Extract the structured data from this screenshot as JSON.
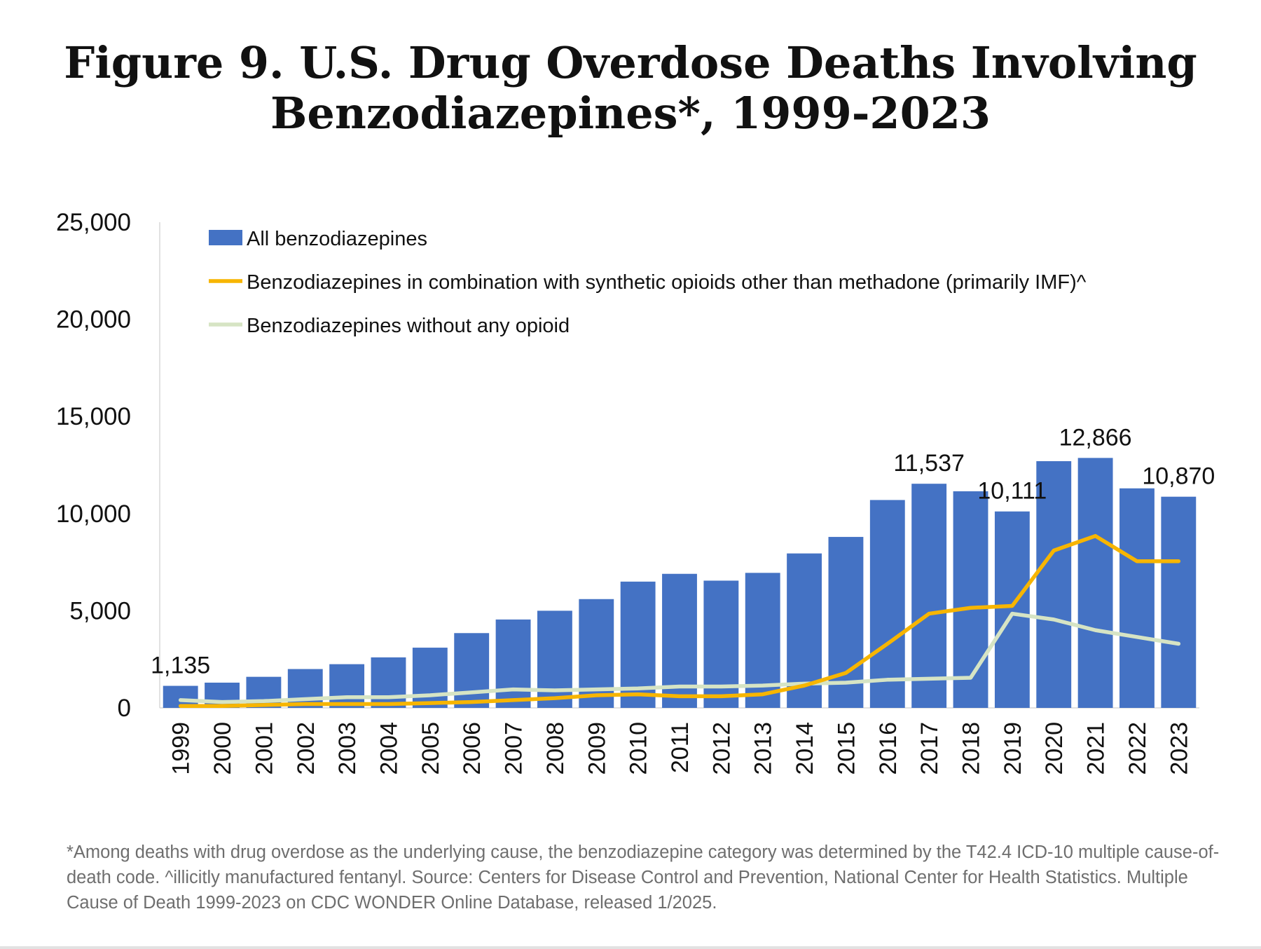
{
  "title": "Figure 9. U.S. Drug Overdose Deaths Involving Benzodiazepines*, 1999-2023",
  "title_lines": [
    "Figure 9. U.S. Drug Overdose Deaths Involving",
    "Benzodiazepines*, 1999-2023"
  ],
  "footnote": "*Among deaths with drug overdose as the underlying cause, the benzodiazepine category was determined by the T42.4 ICD-10 multiple cause-of-death code. ^illicitly manufactured fentanyl. Source: Centers for Disease Control and Prevention, National Center for Health Statistics. Multiple Cause of Death 1999-2023 on CDC WONDER Online Database, released 1/2025.",
  "chart_data": {
    "type": "bar",
    "title": "Figure 9. U.S. Drug Overdose Deaths Involving Benzodiazepines*, 1999-2023",
    "xlabel": "",
    "ylabel": "",
    "ylim": [
      0,
      25000
    ],
    "yticks": [
      "0",
      "5,000",
      "10,000",
      "15,000",
      "20,000",
      "25,000"
    ],
    "grid": false,
    "legend_position": "top-left",
    "categories": [
      "1999",
      "2000",
      "2001",
      "2002",
      "2003",
      "2004",
      "2005",
      "2006",
      "2007",
      "2008",
      "2009",
      "2010",
      "2011",
      "2012",
      "2013",
      "2014",
      "2015",
      "2016",
      "2017",
      "2018",
      "2019",
      "2020",
      "2021",
      "2022",
      "2023"
    ],
    "series": [
      {
        "name": "All benzodiazepines",
        "type": "bar",
        "color": "#4472c4",
        "values": [
          1135,
          1300,
          1600,
          2000,
          2250,
          2600,
          3100,
          3850,
          4550,
          5000,
          5600,
          6500,
          6900,
          6550,
          6950,
          7950,
          8800,
          10700,
          11537,
          11150,
          10111,
          12700,
          12866,
          11300,
          10870
        ]
      },
      {
        "name": "Benzodiazepines in combination with synthetic opioids other than methadone (primarily IMF)^",
        "type": "line",
        "color": "#f7b500",
        "values": [
          100,
          100,
          150,
          200,
          200,
          200,
          250,
          300,
          400,
          500,
          650,
          700,
          600,
          600,
          700,
          1150,
          1800,
          3300,
          4850,
          5150,
          5250,
          8100,
          8850,
          7550,
          7550
        ]
      },
      {
        "name": "Benzodiazepines without any opioid",
        "type": "line",
        "color": "#d6e4c4",
        "values": [
          400,
          300,
          350,
          450,
          550,
          550,
          650,
          800,
          950,
          900,
          950,
          1000,
          1100,
          1100,
          1150,
          1250,
          1300,
          1450,
          1500,
          1550,
          4850,
          4550,
          4000,
          3650,
          3300
        ]
      }
    ],
    "data_labels": [
      {
        "category": "1999",
        "text": "1,135"
      },
      {
        "category": "2017",
        "text": "11,537"
      },
      {
        "category": "2019",
        "text": "10,111"
      },
      {
        "category": "2021",
        "text": "12,866"
      },
      {
        "category": "2023",
        "text": "10,870"
      }
    ]
  }
}
